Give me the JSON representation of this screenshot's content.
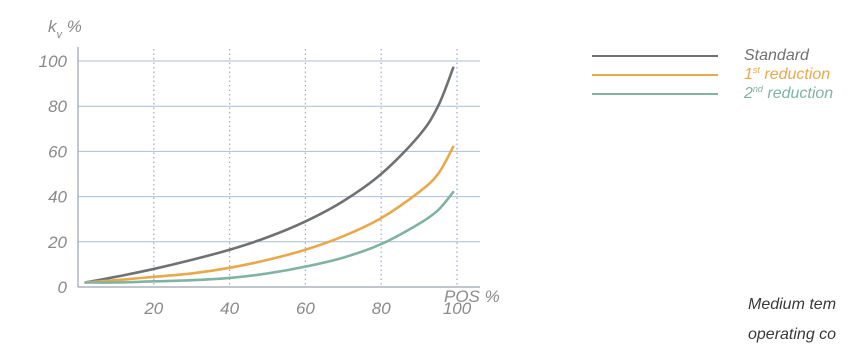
{
  "chart_data": {
    "type": "line",
    "ylabel": "k_v %",
    "ylabel_main": "k",
    "ylabel_sub": "v",
    "ylabel_unit": " %",
    "xlabel": "POS %",
    "xlim": [
      0,
      100
    ],
    "ylim": [
      0,
      100
    ],
    "x_ticks": [
      20,
      40,
      60,
      80,
      100
    ],
    "y_ticks": [
      0,
      20,
      40,
      60,
      80,
      100
    ],
    "grid": "vertical dotted at x ticks, horizontal solid at y ticks",
    "legend_position": "right",
    "x": [
      2,
      10,
      20,
      30,
      40,
      50,
      60,
      70,
      80,
      90,
      95,
      99
    ],
    "series": [
      {
        "name": "Standard",
        "legend_main": "Standard",
        "legend_sup": "",
        "legend_rest": "",
        "color": "#6f7173",
        "values": [
          2,
          4.5,
          8,
          12,
          16.5,
          22,
          29,
          38,
          50,
          67,
          80,
          97
        ]
      },
      {
        "name": "1st reduction",
        "legend_main": "1",
        "legend_sup": "st",
        "legend_rest": " reduction",
        "color": "#e8a94a",
        "values": [
          2,
          3,
          4.5,
          6,
          8.5,
          12,
          16.5,
          22.5,
          30.5,
          42,
          50,
          62
        ]
      },
      {
        "name": "2nd reduction",
        "legend_main": "2",
        "legend_sup": "nd",
        "legend_rest": " reduction",
        "color": "#7fb3a3",
        "values": [
          2,
          2,
          2.5,
          3,
          4,
          6,
          9,
          13,
          19,
          28,
          34,
          42
        ]
      }
    ]
  },
  "note": {
    "line1": "Medium tem",
    "line2": "operating co"
  }
}
